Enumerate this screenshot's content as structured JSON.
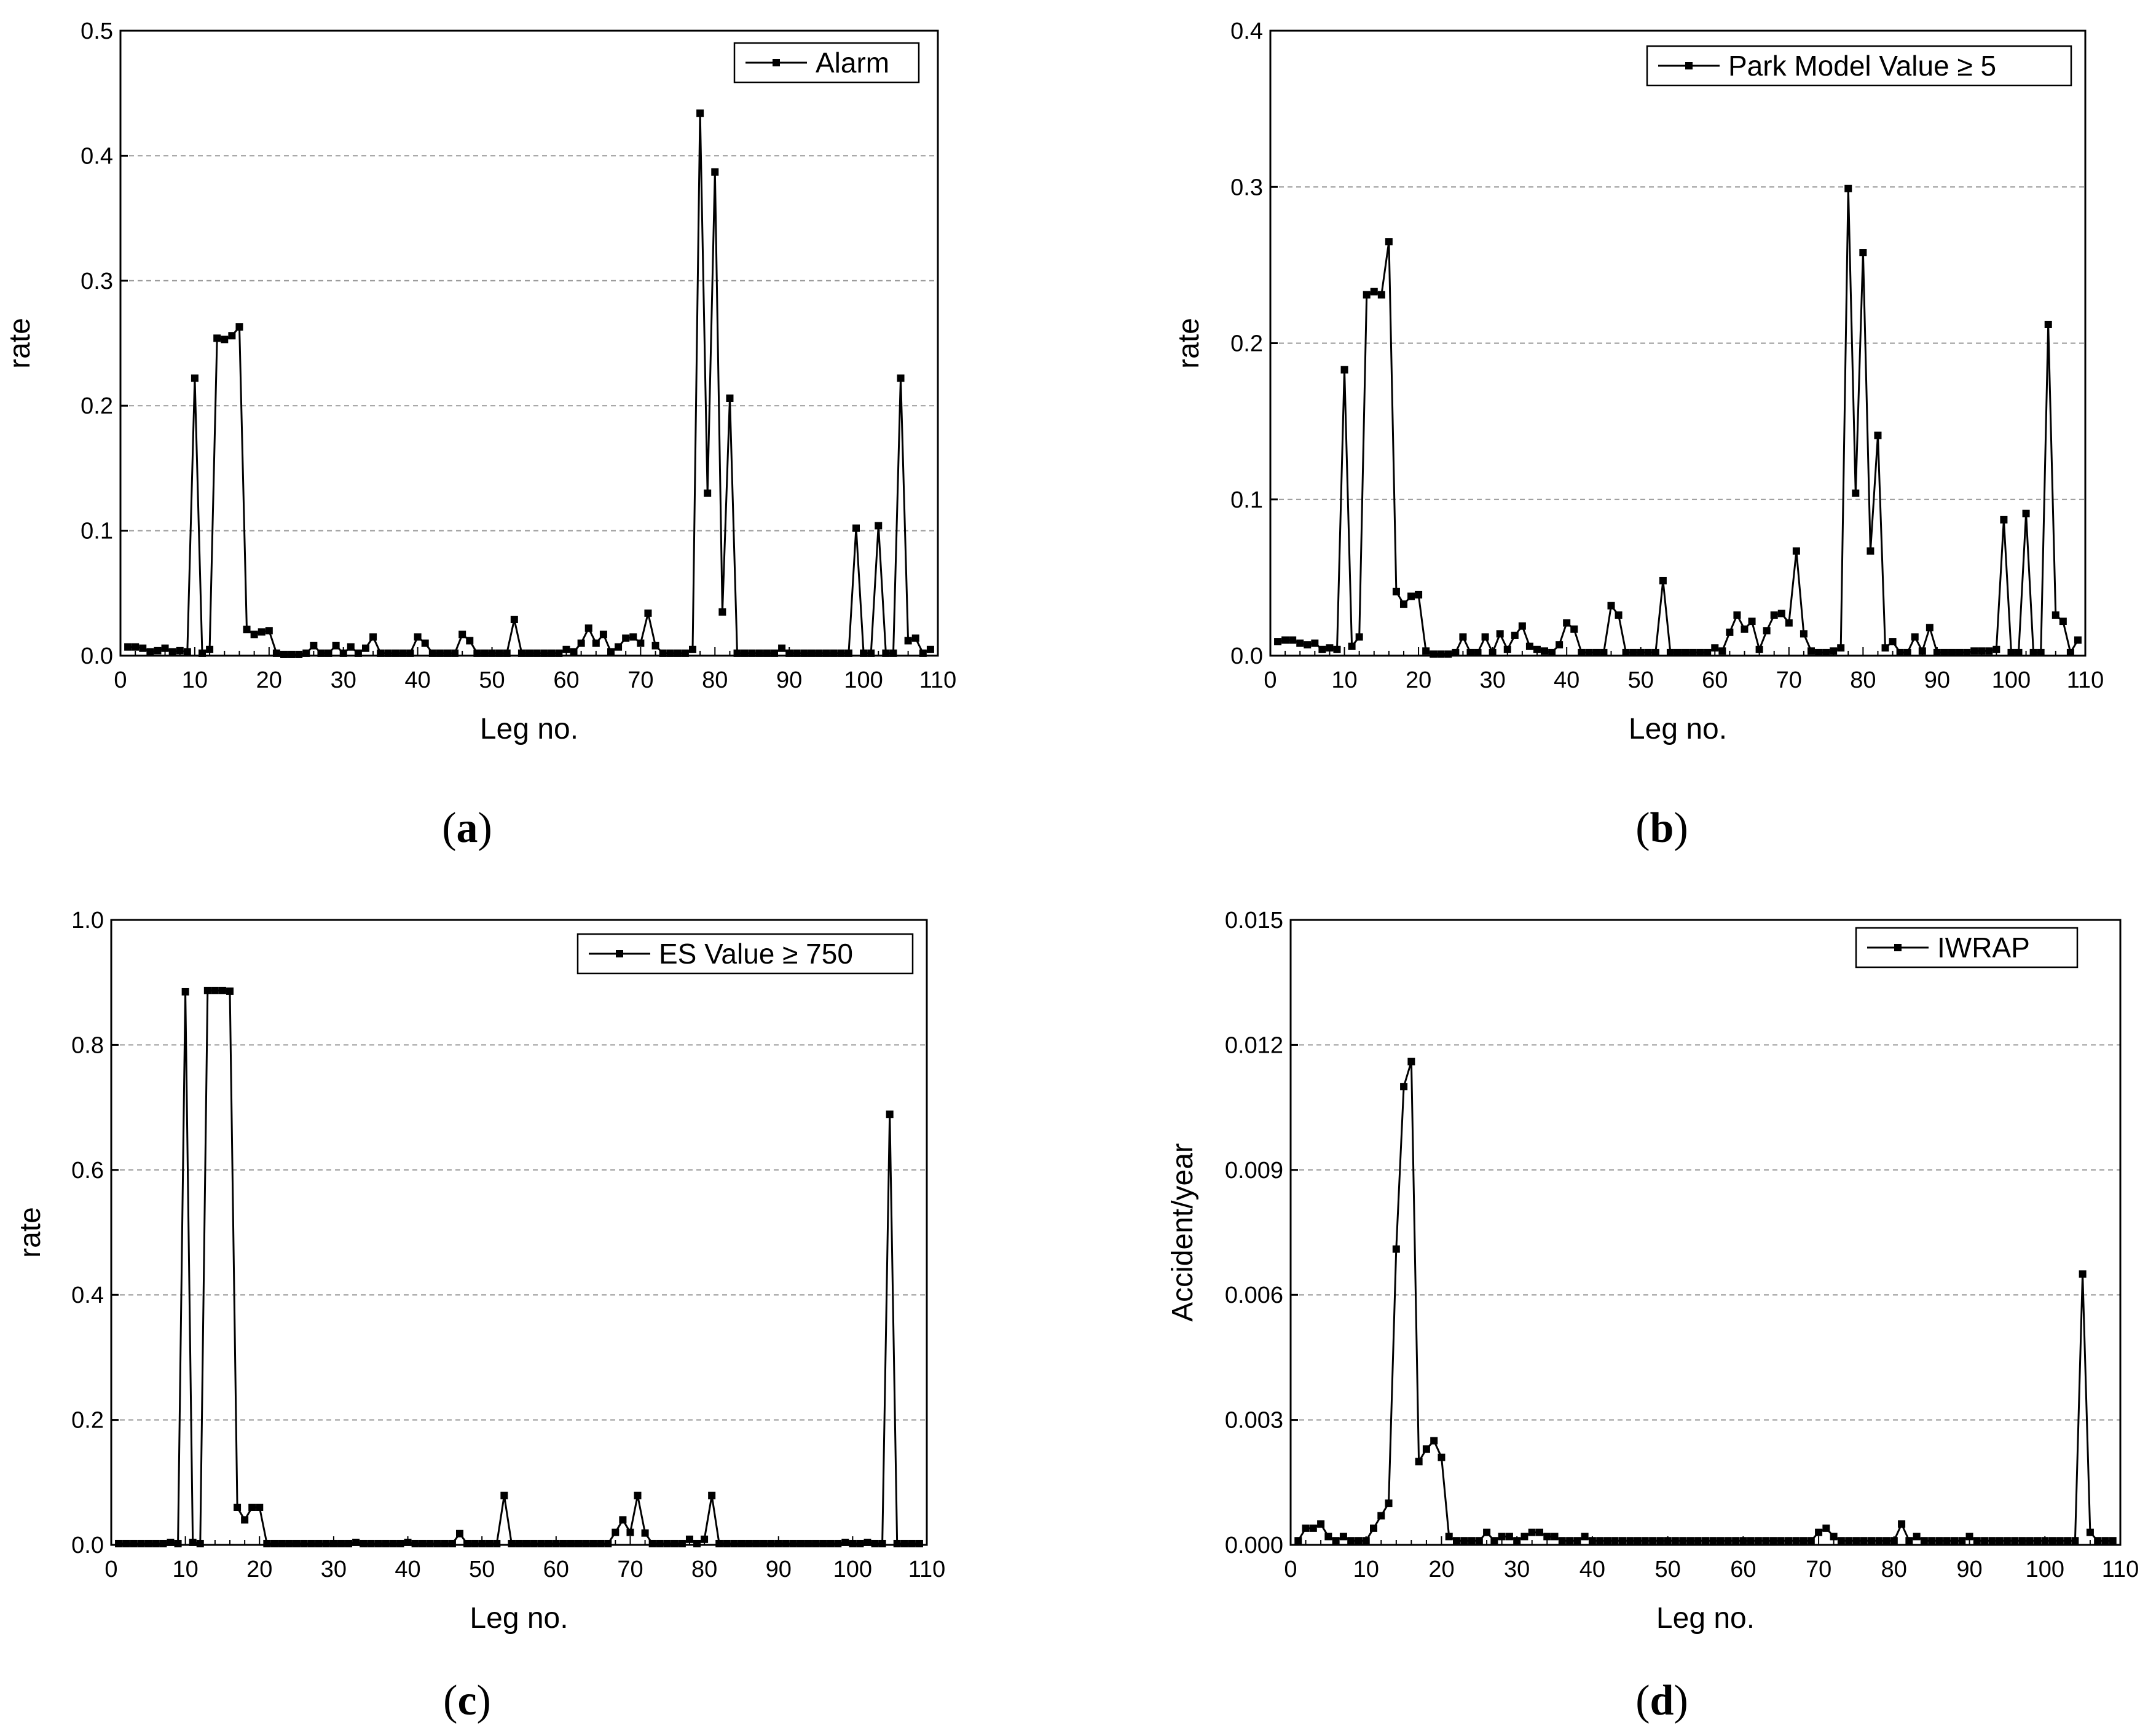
{
  "chart_data": [
    {
      "id": "a",
      "type": "line",
      "panel_label": "a",
      "xlabel": "Leg no.",
      "ylabel": "rate",
      "xlim": [
        0,
        110
      ],
      "ylim": [
        0,
        0.5
      ],
      "xticks": [
        0,
        10,
        20,
        30,
        40,
        50,
        60,
        70,
        80,
        90,
        100,
        110
      ],
      "yticks": [
        0,
        0.1,
        0.2,
        0.3,
        0.4,
        0.5
      ],
      "ytick_labels": [
        "0.0",
        "0.1",
        "0.2",
        "0.3",
        "0.4",
        "0.5"
      ],
      "grid": "horizontal dashed",
      "legend_position": "top-right",
      "series": [
        {
          "name": "Alarm",
          "x": [
            1,
            2,
            3,
            4,
            5,
            6,
            7,
            8,
            9,
            10,
            11,
            12,
            13,
            14,
            15,
            16,
            17,
            18,
            19,
            20,
            21,
            22,
            23,
            24,
            25,
            26,
            27,
            28,
            29,
            30,
            31,
            32,
            33,
            34,
            35,
            36,
            37,
            38,
            39,
            40,
            41,
            42,
            43,
            44,
            45,
            46,
            47,
            48,
            49,
            50,
            51,
            52,
            53,
            54,
            55,
            56,
            57,
            58,
            59,
            60,
            61,
            62,
            63,
            64,
            65,
            66,
            67,
            68,
            69,
            70,
            71,
            72,
            73,
            74,
            75,
            76,
            77,
            78,
            79,
            80,
            81,
            82,
            83,
            84,
            85,
            86,
            87,
            88,
            89,
            90,
            91,
            92,
            93,
            94,
            95,
            96,
            97,
            98,
            99,
            100,
            101,
            102,
            103,
            104,
            105,
            106,
            107,
            108,
            109
          ],
          "y": [
            0.007,
            0.007,
            0.006,
            0.003,
            0.004,
            0.006,
            0.003,
            0.004,
            0.003,
            0.222,
            0.002,
            0.005,
            0.254,
            0.253,
            0.256,
            0.263,
            0.021,
            0.017,
            0.019,
            0.02,
            0.002,
            0.001,
            0.001,
            0.001,
            0.002,
            0.008,
            0.002,
            0.002,
            0.008,
            0.002,
            0.007,
            0.002,
            0.006,
            0.015,
            0.002,
            0.002,
            0.002,
            0.002,
            0.002,
            0.015,
            0.01,
            0.002,
            0.002,
            0.002,
            0.002,
            0.017,
            0.012,
            0.002,
            0.002,
            0.002,
            0.002,
            0.002,
            0.029,
            0.002,
            0.002,
            0.002,
            0.002,
            0.002,
            0.002,
            0.005,
            0.003,
            0.01,
            0.022,
            0.01,
            0.017,
            0.003,
            0.007,
            0.014,
            0.015,
            0.01,
            0.034,
            0.008,
            0.002,
            0.002,
            0.002,
            0.002,
            0.005,
            0.434,
            0.13,
            0.387,
            0.035,
            0.206,
            0.002,
            0.002,
            0.002,
            0.002,
            0.002,
            0.002,
            0.006,
            0.002,
            0.002,
            0.002,
            0.002,
            0.002,
            0.002,
            0.002,
            0.002,
            0.002,
            0.102,
            0.002,
            0.002,
            0.104,
            0.002,
            0.002,
            0.222,
            0.012,
            0.014,
            0.002,
            0.005
          ]
        }
      ]
    },
    {
      "id": "b",
      "type": "line",
      "panel_label": "b",
      "xlabel": "Leg no.",
      "ylabel": "rate",
      "xlim": [
        0,
        110
      ],
      "ylim": [
        0,
        0.4
      ],
      "xticks": [
        0,
        10,
        20,
        30,
        40,
        50,
        60,
        70,
        80,
        90,
        100,
        110
      ],
      "yticks": [
        0,
        0.1,
        0.2,
        0.3,
        0.4
      ],
      "ytick_labels": [
        "0.0",
        "0.1",
        "0.2",
        "0.3",
        "0.4"
      ],
      "grid": "horizontal dashed",
      "legend_position": "top-right",
      "series": [
        {
          "name": "Park Model Value ≥ 5",
          "x": [
            1,
            2,
            3,
            4,
            5,
            6,
            7,
            8,
            9,
            10,
            11,
            12,
            13,
            14,
            15,
            16,
            17,
            18,
            19,
            20,
            21,
            22,
            23,
            24,
            25,
            26,
            27,
            28,
            29,
            30,
            31,
            32,
            33,
            34,
            35,
            36,
            37,
            38,
            39,
            40,
            41,
            42,
            43,
            44,
            45,
            46,
            47,
            48,
            49,
            50,
            51,
            52,
            53,
            54,
            55,
            56,
            57,
            58,
            59,
            60,
            61,
            62,
            63,
            64,
            65,
            66,
            67,
            68,
            69,
            70,
            71,
            72,
            73,
            74,
            75,
            76,
            77,
            78,
            79,
            80,
            81,
            82,
            83,
            84,
            85,
            86,
            87,
            88,
            89,
            90,
            91,
            92,
            93,
            94,
            95,
            96,
            97,
            98,
            99,
            100,
            101,
            102,
            103,
            104,
            105,
            106,
            107,
            108,
            109
          ],
          "y": [
            0.009,
            0.01,
            0.01,
            0.008,
            0.007,
            0.008,
            0.004,
            0.005,
            0.004,
            0.183,
            0.006,
            0.012,
            0.231,
            0.233,
            0.231,
            0.265,
            0.041,
            0.033,
            0.038,
            0.039,
            0.003,
            0.001,
            0.001,
            0.001,
            0.002,
            0.012,
            0.002,
            0.002,
            0.012,
            0.002,
            0.014,
            0.004,
            0.013,
            0.019,
            0.006,
            0.004,
            0.003,
            0.002,
            0.007,
            0.021,
            0.017,
            0.002,
            0.002,
            0.002,
            0.002,
            0.032,
            0.026,
            0.002,
            0.002,
            0.002,
            0.002,
            0.002,
            0.048,
            0.002,
            0.002,
            0.002,
            0.002,
            0.002,
            0.002,
            0.005,
            0.003,
            0.015,
            0.026,
            0.017,
            0.022,
            0.004,
            0.016,
            0.026,
            0.027,
            0.021,
            0.067,
            0.014,
            0.003,
            0.002,
            0.002,
            0.003,
            0.005,
            0.299,
            0.104,
            0.258,
            0.067,
            0.141,
            0.005,
            0.009,
            0.002,
            0.002,
            0.012,
            0.003,
            0.018,
            0.002,
            0.002,
            0.002,
            0.002,
            0.002,
            0.003,
            0.003,
            0.003,
            0.004,
            0.087,
            0.002,
            0.002,
            0.091,
            0.002,
            0.002,
            0.212,
            0.026,
            0.022,
            0.002,
            0.01
          ]
        }
      ]
    },
    {
      "id": "c",
      "type": "line",
      "panel_label": "c",
      "xlabel": "Leg no.",
      "ylabel": "rate",
      "xlim": [
        0,
        110
      ],
      "ylim": [
        0,
        1.0
      ],
      "xticks": [
        0,
        10,
        20,
        30,
        40,
        50,
        60,
        70,
        80,
        90,
        100,
        110
      ],
      "yticks": [
        0,
        0.2,
        0.4,
        0.6,
        0.8,
        1.0
      ],
      "ytick_labels": [
        "0.0",
        "0.2",
        "0.4",
        "0.6",
        "0.8",
        "1.0"
      ],
      "grid": "horizontal dashed",
      "legend_position": "top-right",
      "series": [
        {
          "name": "ES Value ≥ 750",
          "x": [
            1,
            2,
            3,
            4,
            5,
            6,
            7,
            8,
            9,
            10,
            11,
            12,
            13,
            14,
            15,
            16,
            17,
            18,
            19,
            20,
            21,
            22,
            23,
            24,
            25,
            26,
            27,
            28,
            29,
            30,
            31,
            32,
            33,
            34,
            35,
            36,
            37,
            38,
            39,
            40,
            41,
            42,
            43,
            44,
            45,
            46,
            47,
            48,
            49,
            50,
            51,
            52,
            53,
            54,
            55,
            56,
            57,
            58,
            59,
            60,
            61,
            62,
            63,
            64,
            65,
            66,
            67,
            68,
            69,
            70,
            71,
            72,
            73,
            74,
            75,
            76,
            77,
            78,
            79,
            80,
            81,
            82,
            83,
            84,
            85,
            86,
            87,
            88,
            89,
            90,
            91,
            92,
            93,
            94,
            95,
            96,
            97,
            98,
            99,
            100,
            101,
            102,
            103,
            104,
            105,
            106,
            107,
            108,
            109
          ],
          "y": [
            0.002,
            0.002,
            0.002,
            0.002,
            0.002,
            0.002,
            0.002,
            0.004,
            0.002,
            0.885,
            0.004,
            0.002,
            0.887,
            0.887,
            0.887,
            0.886,
            0.06,
            0.04,
            0.06,
            0.06,
            0.002,
            0.002,
            0.002,
            0.002,
            0.002,
            0.002,
            0.002,
            0.002,
            0.002,
            0.002,
            0.002,
            0.002,
            0.004,
            0.002,
            0.002,
            0.002,
            0.002,
            0.002,
            0.002,
            0.004,
            0.002,
            0.002,
            0.002,
            0.002,
            0.002,
            0.002,
            0.018,
            0.002,
            0.002,
            0.002,
            0.002,
            0.002,
            0.079,
            0.002,
            0.002,
            0.002,
            0.002,
            0.002,
            0.002,
            0.002,
            0.002,
            0.002,
            0.002,
            0.002,
            0.002,
            0.002,
            0.002,
            0.02,
            0.04,
            0.02,
            0.079,
            0.019,
            0.002,
            0.002,
            0.002,
            0.002,
            0.002,
            0.009,
            0.002,
            0.009,
            0.079,
            0.002,
            0.002,
            0.002,
            0.002,
            0.002,
            0.002,
            0.002,
            0.002,
            0.002,
            0.002,
            0.002,
            0.002,
            0.002,
            0.002,
            0.002,
            0.002,
            0.002,
            0.004,
            0.002,
            0.002,
            0.004,
            0.002,
            0.002,
            0.689,
            0.002,
            0.002,
            0.002,
            0.002
          ]
        }
      ]
    },
    {
      "id": "d",
      "type": "line",
      "panel_label": "d",
      "xlabel": "Leg no.",
      "ylabel": "Accident/year",
      "xlim": [
        0,
        110
      ],
      "ylim": [
        0,
        0.015
      ],
      "xticks": [
        0,
        10,
        20,
        30,
        40,
        50,
        60,
        70,
        80,
        90,
        100,
        110
      ],
      "yticks": [
        0,
        0.003,
        0.006,
        0.009,
        0.012,
        0.015
      ],
      "ytick_labels": [
        "0.000",
        "0.003",
        "0.006",
        "0.009",
        "0.012",
        "0.015"
      ],
      "grid": "horizontal dashed",
      "legend_position": "top-right",
      "series": [
        {
          "name": "IWRAP",
          "x": [
            1,
            2,
            3,
            4,
            5,
            6,
            7,
            8,
            9,
            10,
            11,
            12,
            13,
            14,
            15,
            16,
            17,
            18,
            19,
            20,
            21,
            22,
            23,
            24,
            25,
            26,
            27,
            28,
            29,
            30,
            31,
            32,
            33,
            34,
            35,
            36,
            37,
            38,
            39,
            40,
            41,
            42,
            43,
            44,
            45,
            46,
            47,
            48,
            49,
            50,
            51,
            52,
            53,
            54,
            55,
            56,
            57,
            58,
            59,
            60,
            61,
            62,
            63,
            64,
            65,
            66,
            67,
            68,
            69,
            70,
            71,
            72,
            73,
            74,
            75,
            76,
            77,
            78,
            79,
            80,
            81,
            82,
            83,
            84,
            85,
            86,
            87,
            88,
            89,
            90,
            91,
            92,
            93,
            94,
            95,
            96,
            97,
            98,
            99,
            100,
            101,
            102,
            103,
            104,
            105,
            106,
            107,
            108,
            109
          ],
          "y": [
            0.0001,
            0.0004,
            0.0004,
            0.0005,
            0.0002,
            0.0001,
            0.0002,
            0.0001,
            0.0001,
            0.0001,
            0.0004,
            0.0007,
            0.001,
            0.0071,
            0.011,
            0.0116,
            0.002,
            0.0023,
            0.0025,
            0.0021,
            0.0002,
            0.0001,
            0.0001,
            0.0001,
            0.0001,
            0.0003,
            0.0001,
            0.0002,
            0.0002,
            0.0001,
            0.0002,
            0.0003,
            0.0003,
            0.0002,
            0.0002,
            0.0001,
            0.0001,
            0.0001,
            0.0002,
            0.0001,
            0.0001,
            0.0001,
            0.0001,
            0.0001,
            0.0001,
            0.0001,
            0.0001,
            0.0001,
            0.0001,
            0.0001,
            0.0001,
            0.0001,
            0.0001,
            0.0001,
            0.0001,
            0.0001,
            0.0001,
            0.0001,
            0.0001,
            0.0001,
            0.0001,
            0.0001,
            0.0001,
            0.0001,
            0.0001,
            0.0001,
            0.0001,
            0.0001,
            0.0001,
            0.0003,
            0.0004,
            0.0002,
            0.0001,
            0.0001,
            0.0001,
            0.0001,
            0.0001,
            0.0001,
            0.0001,
            0.0001,
            0.0005,
            0.0001,
            0.0002,
            0.0001,
            0.0001,
            0.0001,
            0.0001,
            0.0001,
            0.0001,
            0.0002,
            0.0001,
            0.0001,
            0.0001,
            0.0001,
            0.0001,
            0.0001,
            0.0001,
            0.0001,
            0.0001,
            0.0001,
            0.0001,
            0.0001,
            0.0001,
            0.0001,
            0.0065,
            0.0003,
            0.0001,
            0.0001,
            0.0001
          ]
        }
      ]
    }
  ],
  "colors": {
    "line": "#000000",
    "grid": "#999999",
    "axis": "#000000"
  }
}
